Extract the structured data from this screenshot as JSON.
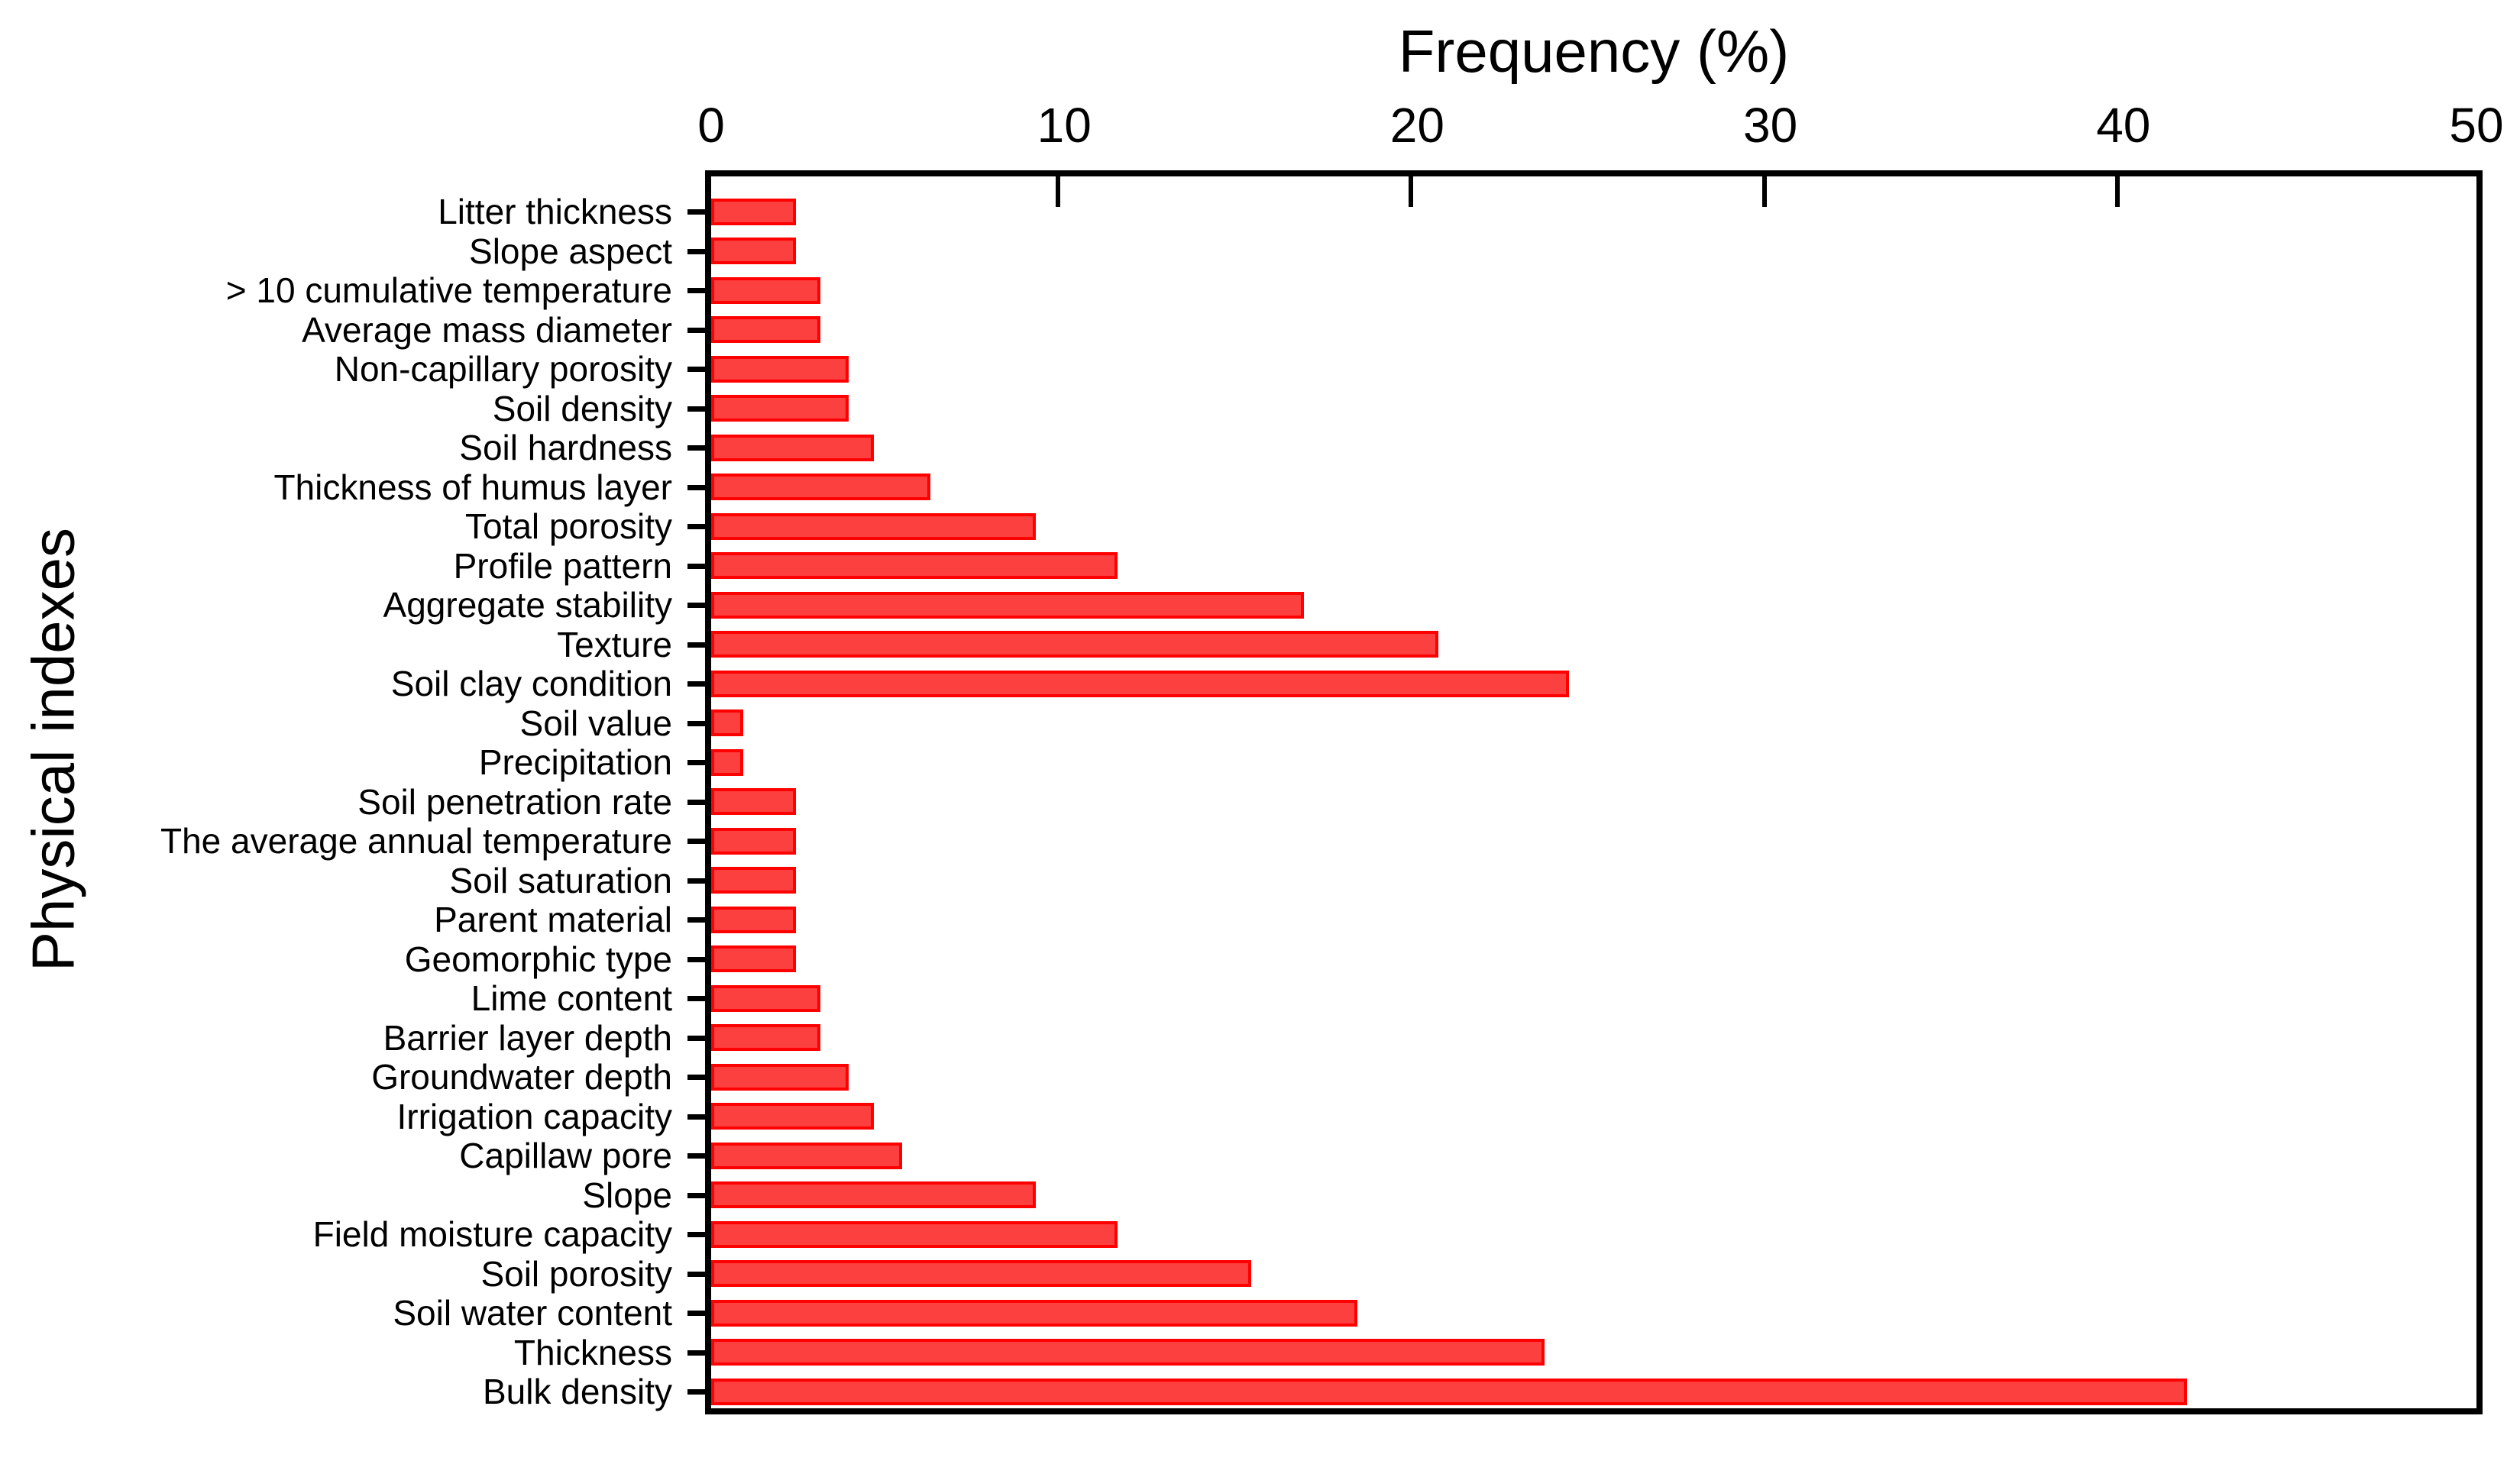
{
  "figure": {
    "x_axis_title": "Frequency (%)",
    "y_axis_title": "Physical indexes"
  },
  "chart_data": {
    "type": "bar",
    "orientation": "horizontal",
    "title": "",
    "xlabel": "Frequency (%)",
    "ylabel": "Physical indexes",
    "xlim": [
      0,
      50
    ],
    "x_ticks": [
      0,
      10,
      20,
      30,
      40,
      50
    ],
    "grid": false,
    "legend": "none",
    "bar_fill_color": "#fc3f3f",
    "bar_border_color": "#ff0000",
    "axis_color": "#000000",
    "categories": [
      "Litter thickness",
      "Slope aspect",
      "> 10 cumulative temperature",
      "Average mass diameter",
      "Non-capillary porosity",
      "Soil density",
      "Soil hardness",
      "Thickness of humus layer",
      "Total porosity",
      "Profile pattern",
      "Aggregate stability",
      "Texture",
      "Soil clay condition",
      "Soil value",
      "Precipitation",
      "Soil penetration rate",
      "The average annual temperature",
      "Soil saturation",
      "Parent material",
      "Geomorphic type",
      "Lime content",
      "Barrier layer depth",
      "Groundwater depth",
      "Irrigation capacity",
      "Capillaw pore",
      "Slope",
      "Field moisture capacity",
      "Soil porosity",
      "Soil water content",
      "Thickness",
      "Bulk density"
    ],
    "values": [
      2.4,
      2.4,
      3.1,
      3.1,
      3.9,
      3.9,
      4.6,
      6.2,
      9.2,
      11.5,
      16.8,
      20.6,
      24.3,
      0.9,
      0.9,
      2.4,
      2.4,
      2.4,
      2.4,
      2.4,
      3.1,
      3.1,
      3.9,
      4.6,
      5.4,
      9.2,
      11.5,
      15.3,
      18.3,
      23.6,
      41.8
    ]
  }
}
